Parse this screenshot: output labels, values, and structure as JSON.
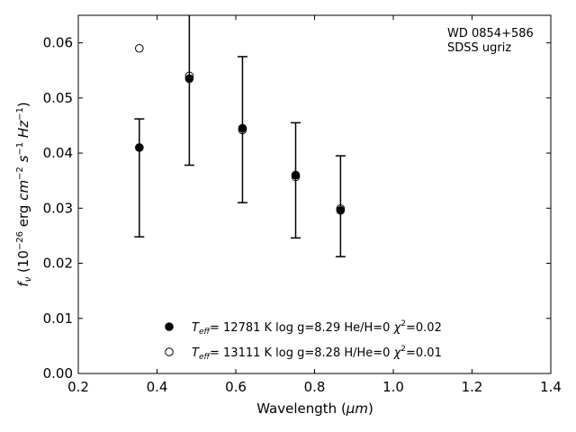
{
  "chart_data": {
    "type": "scatter",
    "xlabel_main": "Wavelength (",
    "xlabel_unit": "μm",
    "xlabel_close": ")",
    "ylabel": {
      "sym": "f",
      "sub": "ν",
      "p1": " (10",
      "e1": "−26",
      "p2": " erg ",
      "cm": "cm",
      "e2": "−2",
      "s": "s",
      "e3": "−1",
      "hz": "Hz",
      "e4": "−1",
      "close": ")"
    },
    "xlim": [
      0.2,
      1.4
    ],
    "ylim": [
      0.0,
      0.065
    ],
    "xticks": [
      "0.2",
      "0.4",
      "0.6",
      "0.8",
      "1.0",
      "1.2",
      "1.4"
    ],
    "yticks": [
      "0.00",
      "0.01",
      "0.02",
      "0.03",
      "0.04",
      "0.05",
      "0.06"
    ],
    "annotation_lines": [
      "WD 0854+586",
      "SDSS ugriz"
    ],
    "observed": {
      "x": [
        0.355,
        0.482,
        0.617,
        0.752,
        0.866
      ],
      "y": [
        0.041,
        0.0535,
        0.0443,
        0.0359,
        0.0295
      ],
      "yerr_low": [
        0.0248,
        0.0378,
        0.031,
        0.0246,
        0.0212
      ],
      "yerr_high": [
        0.0462,
        0.066,
        0.0575,
        0.0455,
        0.0395
      ]
    },
    "series": [
      {
        "marker": "filled",
        "teff": "T",
        "teff_sub": "eff",
        "text": "= 12781 K  log g=8.29  He/H=0  ",
        "chi": "χ",
        "chi_sup": "2",
        "chi_val": "=0.02",
        "x": [
          0.355,
          0.482,
          0.617,
          0.752,
          0.866
        ],
        "y": [
          0.041,
          0.0535,
          0.0445,
          0.036,
          0.0296
        ]
      },
      {
        "marker": "open",
        "teff": "T",
        "teff_sub": "eff",
        "text": "= 13111 K  log g=8.28  H/He=0  ",
        "chi": "χ",
        "chi_sup": "2",
        "chi_val": "=0.01",
        "x": [
          0.355,
          0.482,
          0.617,
          0.752,
          0.866
        ],
        "y": [
          0.059,
          0.054,
          0.0442,
          0.0357,
          0.0299
        ]
      }
    ],
    "legend_position": "bottom-center",
    "grid": false
  }
}
